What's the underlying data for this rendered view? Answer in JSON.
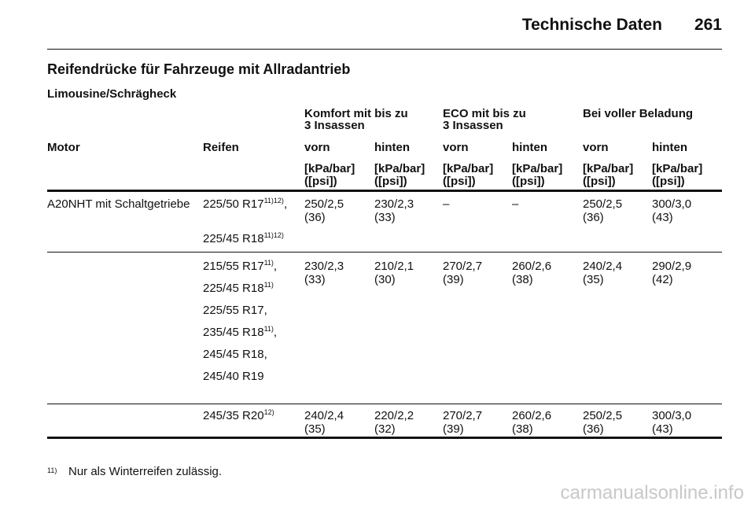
{
  "header": {
    "title": "Technische Daten",
    "page": "261"
  },
  "section_title": "Reifendrücke für Fahrzeuge mit Allradantrieb",
  "subsection_title": "Limousine/Schrägheck",
  "table": {
    "group_headers": [
      [
        "Komfort mit bis zu",
        "3 Insassen"
      ],
      [
        "ECO mit bis zu",
        "3 Insassen"
      ],
      [
        "Bei voller Beladung"
      ]
    ],
    "column_headers": [
      "Motor",
      "Reifen",
      "vorn",
      "hinten",
      "vorn",
      "hinten",
      "vorn",
      "hinten"
    ],
    "units": [
      [
        "[kPa/bar]",
        "([psi])"
      ],
      [
        "[kPa/bar]",
        "([psi])"
      ],
      [
        "[kPa/bar]",
        "([psi])"
      ],
      [
        "[kPa/bar]",
        "([psi])"
      ],
      [
        "[kPa/bar]",
        "([psi])"
      ],
      [
        "[kPa/bar]",
        "([psi])"
      ]
    ],
    "groups": [
      {
        "motor": "A20NHT mit Schaltgetriebe",
        "tires": [
          {
            "text": "225/50 R17",
            "sup": "11)12)",
            "suffix": ","
          },
          {
            "text": "225/45 R18",
            "sup": "11)12)"
          }
        ],
        "values": [
          [
            "250/2,5",
            "(36)"
          ],
          [
            "230/2,3",
            "(33)"
          ],
          [
            "–"
          ],
          [
            "–"
          ],
          [
            "250/2,5",
            "(36)"
          ],
          [
            "300/3,0",
            "(43)"
          ]
        ]
      },
      {
        "tires": [
          {
            "text": "215/55 R17",
            "sup": "11)",
            "suffix": ","
          },
          {
            "text": "225/45 R18",
            "sup": "11)"
          },
          {
            "text": "225/55 R17,"
          },
          {
            "text": "235/45 R18",
            "sup": "11)",
            "suffix": ","
          },
          {
            "text": "245/45 R18,"
          },
          {
            "text": "245/40 R19"
          }
        ],
        "values": [
          [
            "230/2,3",
            "(33)"
          ],
          [
            "210/2,1",
            "(30)"
          ],
          [
            "270/2,7",
            "(39)"
          ],
          [
            "260/2,6",
            "(38)"
          ],
          [
            "240/2,4",
            "(35)"
          ],
          [
            "290/2,9",
            "(42)"
          ]
        ]
      },
      {
        "tires": [
          {
            "text": "245/35 R20",
            "sup": "12)"
          }
        ],
        "values": [
          [
            "240/2,4",
            "(35)"
          ],
          [
            "220/2,2",
            "(32)"
          ],
          [
            "270/2,7",
            "(39)"
          ],
          [
            "260/2,6",
            "(38)"
          ],
          [
            "250/2,5",
            "(36)"
          ],
          [
            "300/3,0",
            "(43)"
          ]
        ]
      }
    ]
  },
  "footnote": {
    "mark": "11)",
    "text": "Nur als Winterreifen zulässig."
  },
  "watermark": "carmanualsonline.info"
}
